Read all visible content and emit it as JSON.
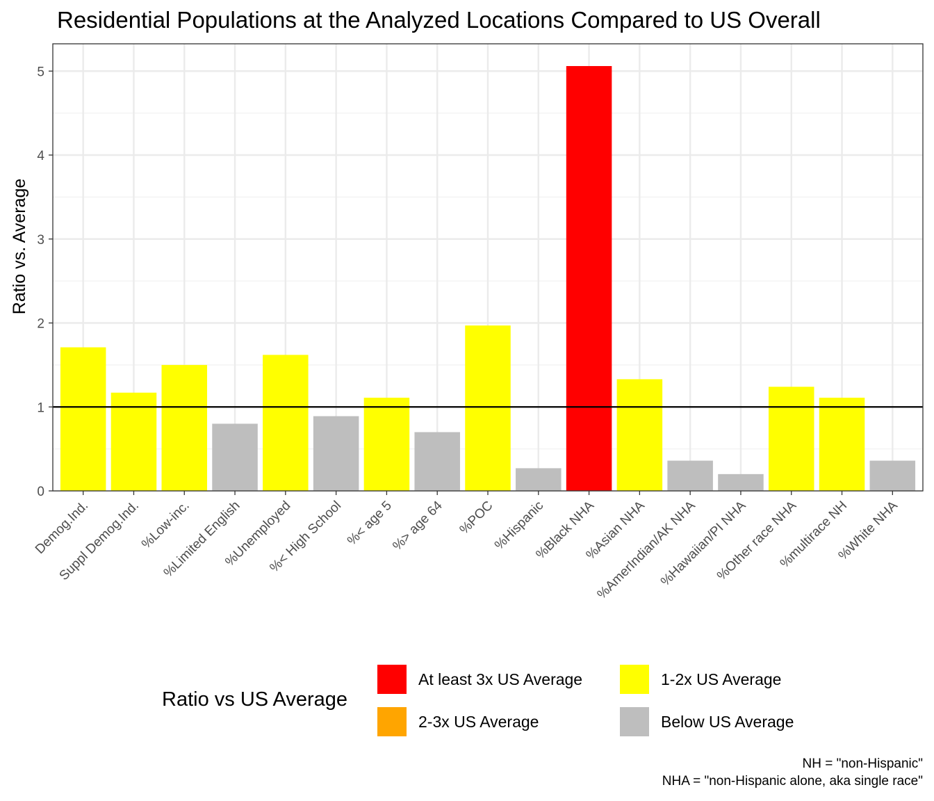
{
  "chart_data": {
    "type": "bar",
    "title": "Residential Populations at the Analyzed Locations Compared to US Overall",
    "xlabel": "",
    "ylabel": "Ratio vs. Average",
    "ylim": [
      0,
      5.3
    ],
    "yticks": [
      0,
      1,
      2,
      3,
      4,
      5
    ],
    "grid": true,
    "reference_line": 1,
    "categories": [
      "Demog.Ind.",
      "Suppl Demog.Ind.",
      "%Low-inc.",
      "%Limited English",
      "%Unemployed",
      "%< High School",
      "%< age 5",
      "%> age 64",
      "%POC",
      "%Hispanic",
      "%Black NHA",
      "%Asian NHA",
      "%AmerIndian/AK NHA",
      "%Hawaiian/PI NHA",
      "%Other race NHA",
      "%multirace NH",
      "%White NHA"
    ],
    "values": [
      1.71,
      1.17,
      1.5,
      0.8,
      1.62,
      0.89,
      1.11,
      0.7,
      1.97,
      0.27,
      5.06,
      1.33,
      0.36,
      0.2,
      1.24,
      1.11,
      0.36
    ],
    "classes": [
      "1-2x US Average",
      "1-2x US Average",
      "1-2x US Average",
      "Below US Average",
      "1-2x US Average",
      "Below US Average",
      "1-2x US Average",
      "Below US Average",
      "1-2x US Average",
      "Below US Average",
      "At least 3x US Average",
      "1-2x US Average",
      "Below US Average",
      "Below US Average",
      "1-2x US Average",
      "1-2x US Average",
      "Below US Average"
    ],
    "legend": {
      "title": "Ratio vs US Average",
      "placement": "bottom",
      "entries": [
        {
          "label": "At least 3x US Average",
          "color": "#FF0000"
        },
        {
          "label": "2-3x US Average",
          "color": "#FFA500"
        },
        {
          "label": "1-2x US Average",
          "color": "#FFFF00"
        },
        {
          "label": "Below US Average",
          "color": "#BEBEBE"
        }
      ]
    },
    "notes": [
      "NH = \"non-Hispanic\"",
      "NHA = \"non-Hispanic alone, aka single race\""
    ]
  }
}
